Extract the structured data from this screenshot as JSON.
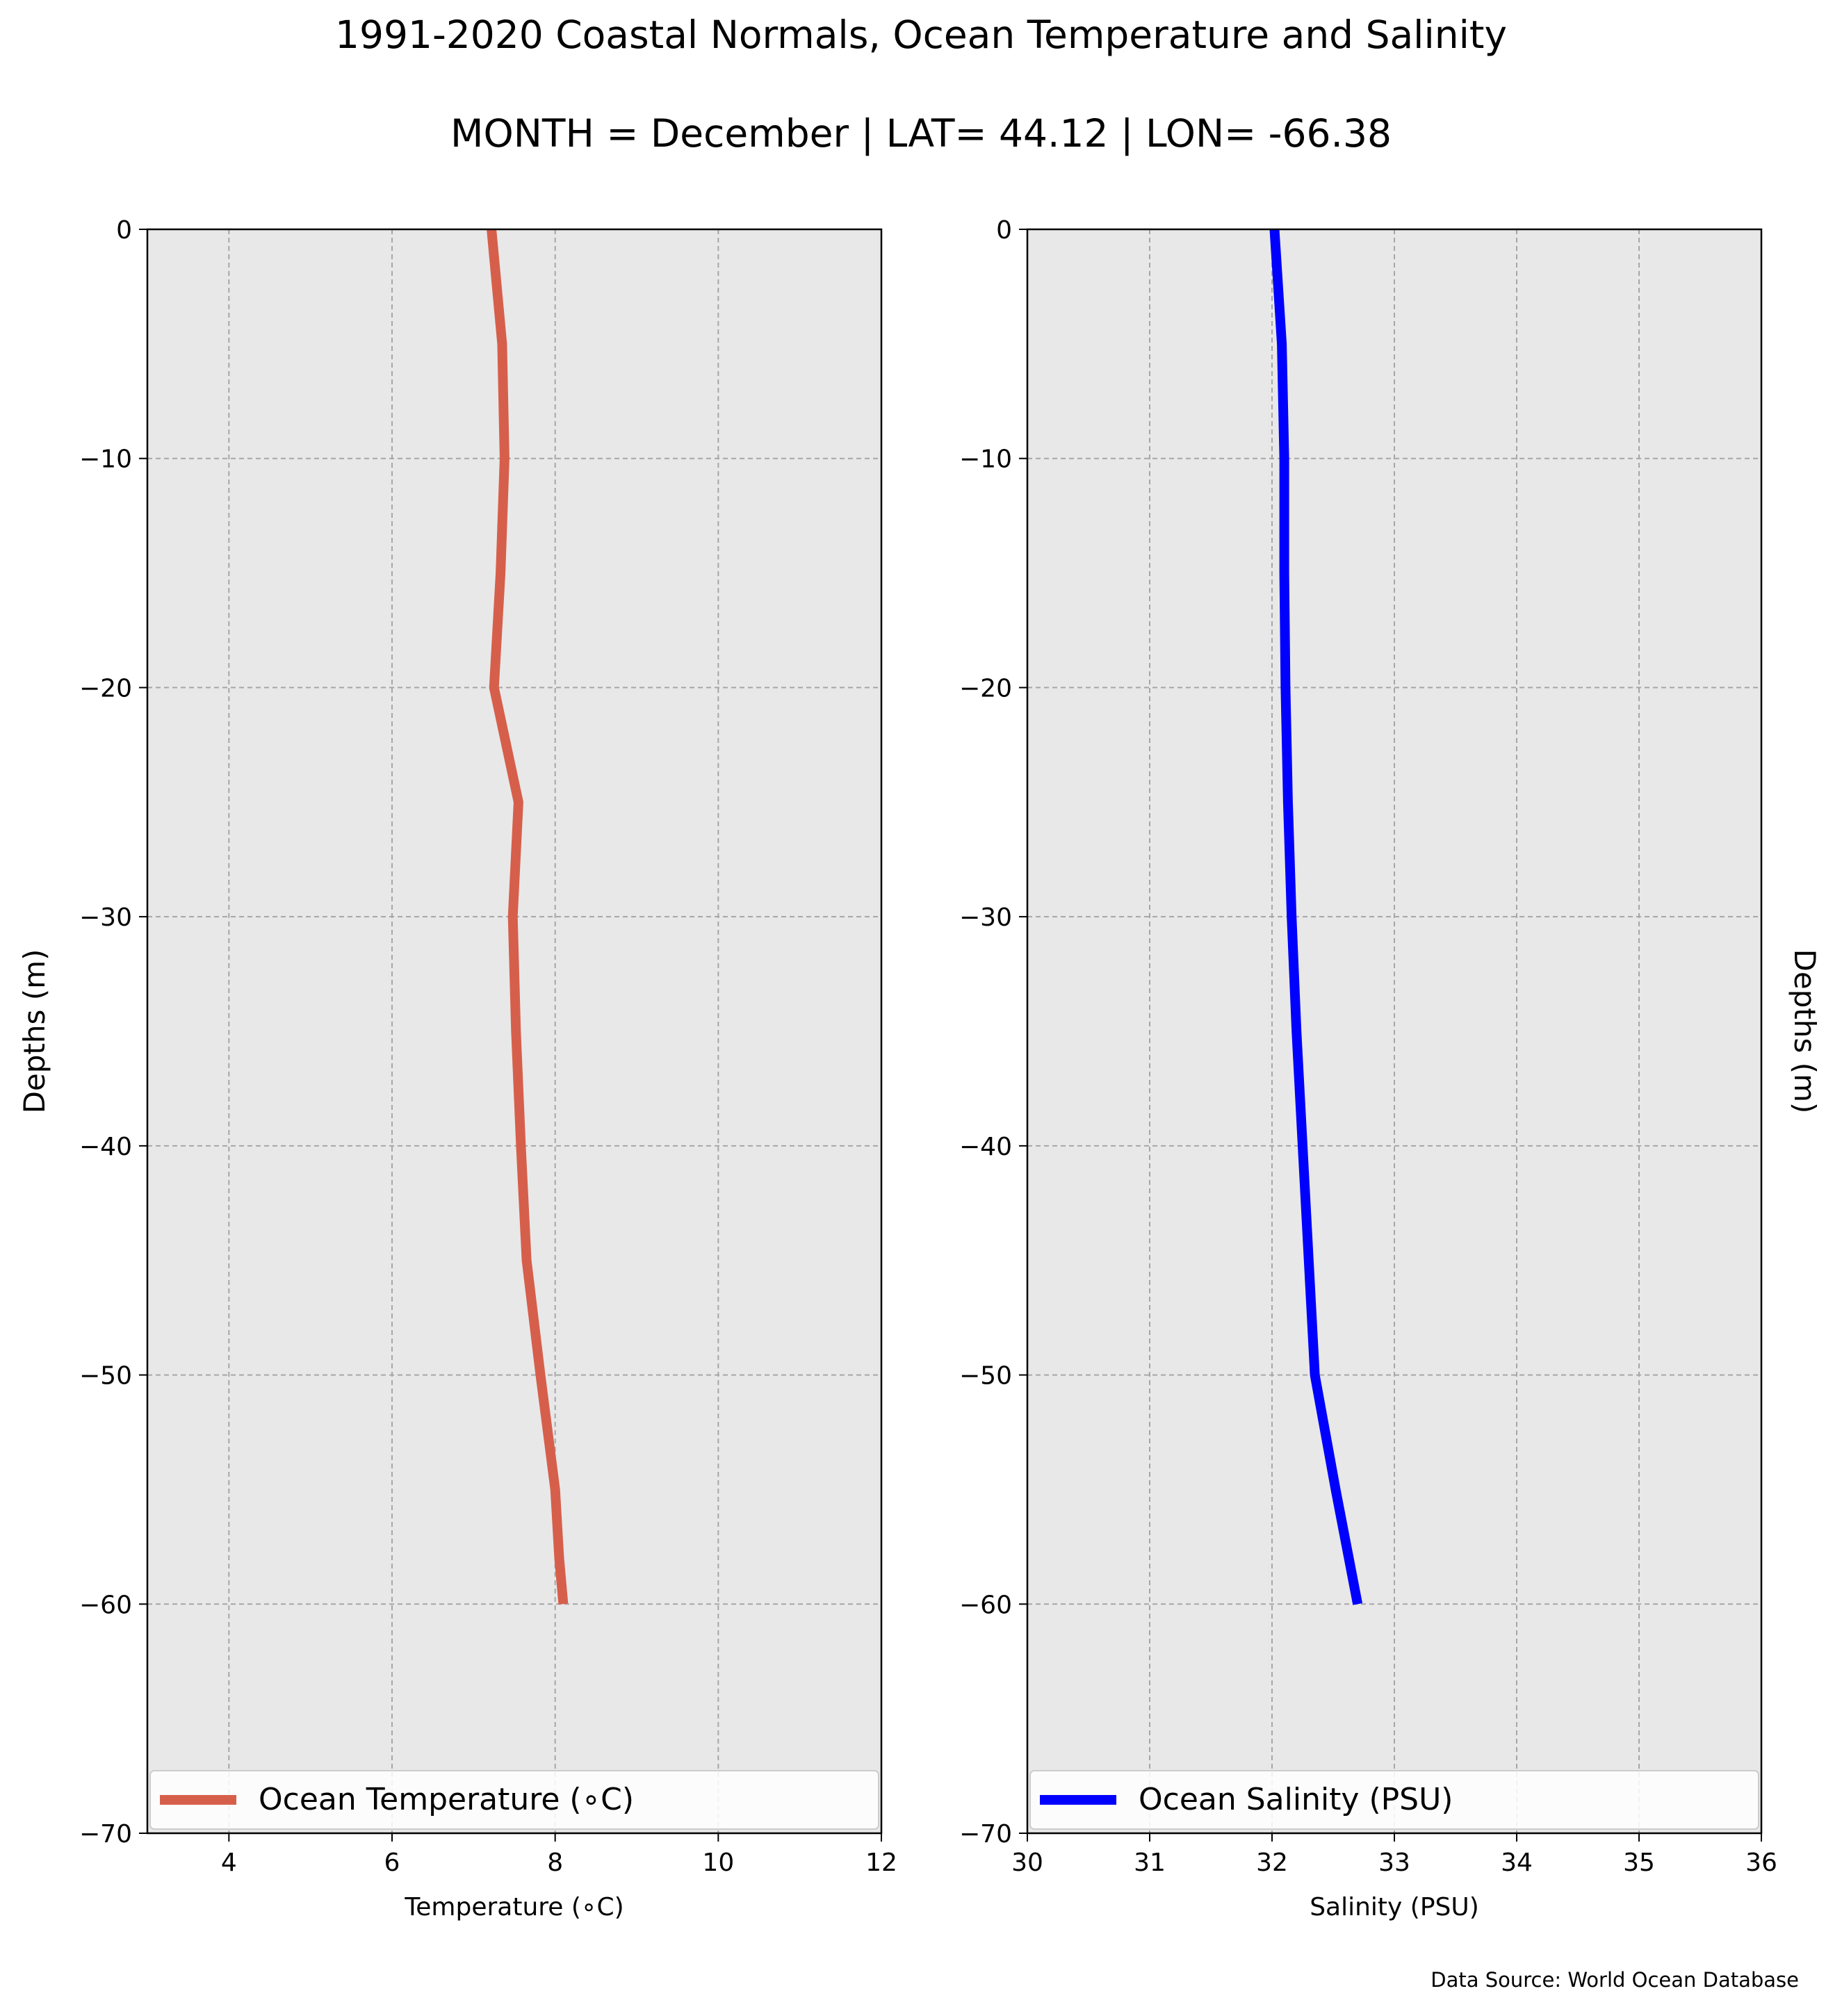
{
  "title": "1991-2020 Coastal Normals, Ocean Temperature and Salinity",
  "subtitle": "MONTH = December | LAT= 44.12 | LON= -66.38",
  "source": "Data Source: World Ocean Database",
  "chart_data": [
    {
      "type": "line",
      "xlabel": "Temperature (∘C)",
      "ylabel": "Depths (m)",
      "xlim": [
        3,
        12
      ],
      "ylim": [
        -70,
        0
      ],
      "xticks": [
        4,
        6,
        8,
        10,
        12
      ],
      "yticks": [
        0,
        -10,
        -20,
        -30,
        -40,
        -50,
        -60,
        -70
      ],
      "grid": true,
      "legend_position": "bottom",
      "color": "#d65f4c",
      "series": [
        {
          "name": "Ocean Temperature (∘C)",
          "x": [
            7.22,
            7.35,
            7.38,
            7.33,
            7.25,
            7.55,
            7.48,
            7.52,
            7.58,
            7.65,
            7.82,
            8.0,
            8.05,
            8.1
          ],
          "y": [
            0,
            -5,
            -10,
            -15,
            -20,
            -25,
            -30,
            -35,
            -40,
            -45,
            -50,
            -55,
            -58,
            -60
          ]
        }
      ]
    },
    {
      "type": "line",
      "xlabel": "Salinity (PSU)",
      "ylabel": "Depths (m)",
      "xlim": [
        30,
        36
      ],
      "ylim": [
        -70,
        0
      ],
      "xticks": [
        30,
        31,
        32,
        33,
        34,
        35,
        36
      ],
      "yticks": [
        0,
        -10,
        -20,
        -30,
        -40,
        -50,
        -60,
        -70
      ],
      "grid": true,
      "legend_position": "bottom",
      "color": "#0000ff",
      "series": [
        {
          "name": "Ocean Salinity (PSU)",
          "x": [
            32.02,
            32.08,
            32.1,
            32.1,
            32.11,
            32.13,
            32.16,
            32.2,
            32.25,
            32.3,
            32.35,
            32.52,
            32.7
          ],
          "y": [
            0,
            -5,
            -10,
            -15,
            -20,
            -25,
            -30,
            -35,
            -40,
            -45,
            -50,
            -55,
            -60
          ]
        }
      ]
    }
  ]
}
